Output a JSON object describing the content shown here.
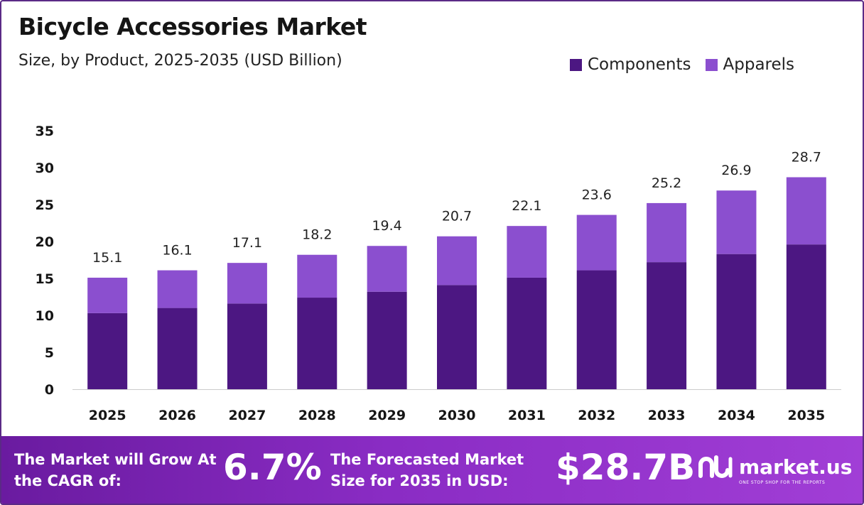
{
  "header": {
    "title": "Bicycle Accessories Market",
    "subtitle": "Size, by Product, 2025-2035 (USD Billion)"
  },
  "colors": {
    "components": "#4c1782",
    "apparels": "#8b4fcf",
    "axis": "#cccccc",
    "text": "#151515"
  },
  "chart_data": {
    "type": "bar",
    "stacked": true,
    "categories": [
      "2025",
      "2026",
      "2027",
      "2028",
      "2029",
      "2030",
      "2031",
      "2032",
      "2033",
      "2034",
      "2035"
    ],
    "series": [
      {
        "name": "Components",
        "values": [
          10.3,
          11.0,
          11.6,
          12.4,
          13.2,
          14.1,
          15.1,
          16.1,
          17.2,
          18.3,
          19.6
        ]
      },
      {
        "name": "Apparels",
        "values": [
          4.8,
          5.1,
          5.5,
          5.8,
          6.2,
          6.6,
          7.0,
          7.5,
          8.0,
          8.6,
          9.1
        ]
      }
    ],
    "totals": [
      "15.1",
      "16.1",
      "17.1",
      "18.2",
      "19.4",
      "20.7",
      "22.1",
      "23.6",
      "25.2",
      "26.9",
      "28.7"
    ],
    "ylim": [
      0,
      35
    ],
    "yticks": [
      "0",
      "5",
      "10",
      "15",
      "20",
      "25",
      "30",
      "35"
    ],
    "grid": false,
    "legend_position": "top-right"
  },
  "footer": {
    "cagr_label": "The Market will Grow At the CAGR of:",
    "cagr_value": "6.7%",
    "size_label": "The Forecasted Market Size for 2035 in USD:",
    "size_value": "$28.7B",
    "brand_name": "market.us",
    "brand_tagline": "ONE STOP SHOP FOR THE REPORTS",
    "brand_icon": "market-us-logo-icon"
  }
}
